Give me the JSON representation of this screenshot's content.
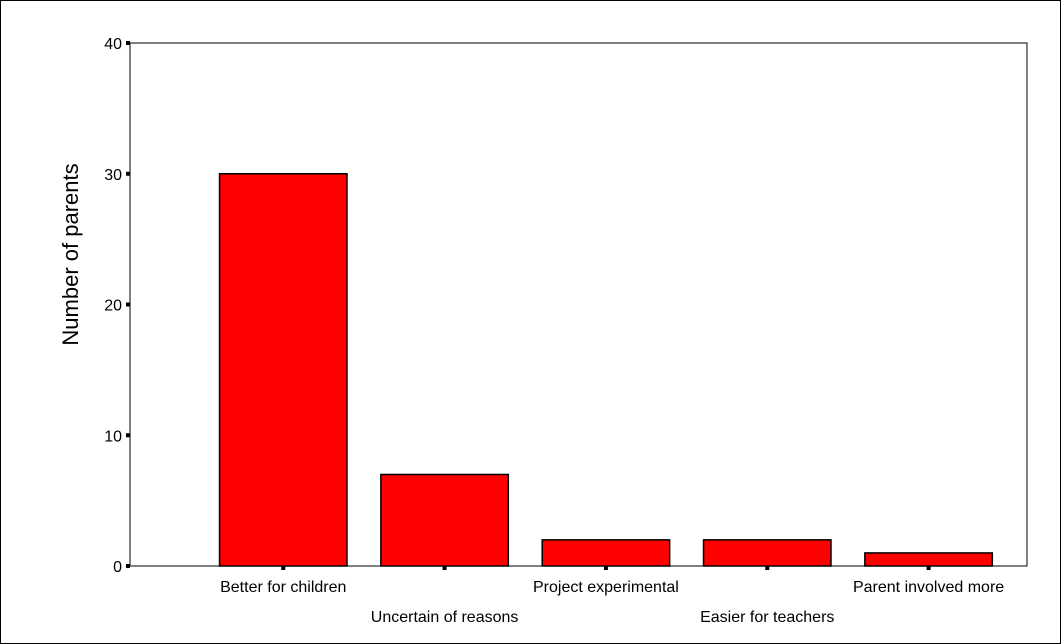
{
  "chart_data": {
    "type": "bar",
    "title": "",
    "xlabel": "",
    "ylabel": "Number of parents",
    "ylim": [
      0,
      40
    ],
    "yticks": [
      0,
      10,
      20,
      30,
      40
    ],
    "categories": [
      "Better for children",
      "Uncertain of reasons",
      "Project experimental",
      "Easier for teachers",
      "Parent involved more"
    ],
    "values": [
      30,
      7,
      2,
      2,
      1
    ],
    "bar_color": "#ff0000",
    "grid": false,
    "legend": "none"
  }
}
